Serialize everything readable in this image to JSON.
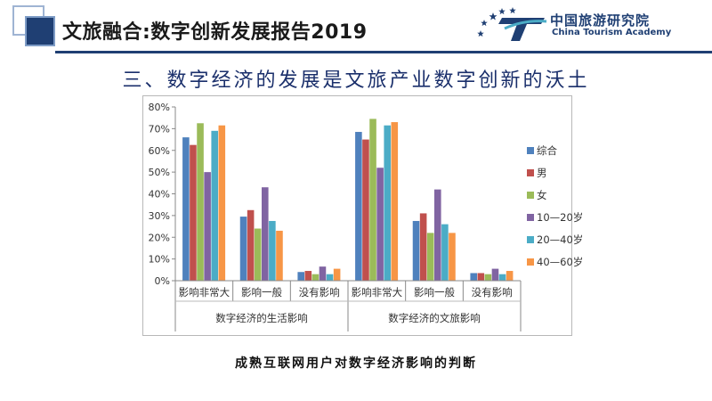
{
  "header": {
    "title": "文旅融合:数字创新发展报告2019",
    "logo_cn": "中国旅游研究院",
    "logo_en": "China Tourism Academy"
  },
  "subtitle": "三、数字经济的发展是文旅产业数字创新的沃土",
  "caption": "成熟互联网用户对数字经济影响的判断",
  "chart_data": {
    "type": "bar",
    "ylim": [
      0,
      80
    ],
    "y_ticks": [
      "0%",
      "10%",
      "20%",
      "30%",
      "40%",
      "50%",
      "60%",
      "70%",
      "80%"
    ],
    "groups": [
      "数字经济的生活影响",
      "数字经济的文旅影响"
    ],
    "categories": [
      "影响非常大",
      "影响一般",
      "没有影响",
      "影响非常大",
      "影响一般",
      "没有影响"
    ],
    "legend_position": "right",
    "grid": false,
    "series": [
      {
        "name": "综合",
        "color": "#4f81bd",
        "values": [
          66,
          29.5,
          4,
          68.5,
          27.5,
          3.5
        ]
      },
      {
        "name": "男",
        "color": "#c0504d",
        "values": [
          62.5,
          32.5,
          4.5,
          65,
          31,
          3.5
        ]
      },
      {
        "name": "女",
        "color": "#9bbb59",
        "values": [
          72.5,
          24,
          3,
          74.5,
          22,
          3
        ]
      },
      {
        "name": "10—20岁",
        "color": "#8064a2",
        "values": [
          50,
          43,
          6.5,
          52,
          42,
          5.5
        ]
      },
      {
        "name": "20—40岁",
        "color": "#4bacc6",
        "values": [
          69,
          27.5,
          3,
          71.5,
          26,
          3
        ]
      },
      {
        "name": "40—60岁",
        "color": "#f79646",
        "values": [
          71.5,
          23,
          5.5,
          73,
          22,
          4.5
        ]
      }
    ]
  }
}
